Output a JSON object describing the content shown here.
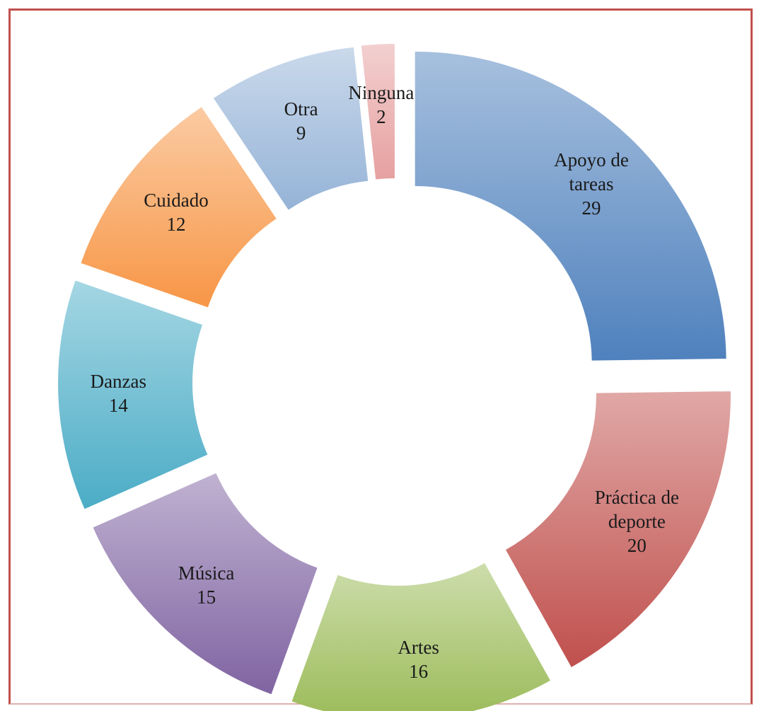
{
  "chart_data": {
    "type": "donut",
    "categories": [
      "Apoyo de tareas",
      "Práctica de deporte",
      "Artes",
      "Música",
      "Danzas",
      "Cuidado",
      "Otra",
      "Ninguna"
    ],
    "values": [
      29,
      20,
      16,
      15,
      14,
      12,
      9,
      2
    ],
    "colors": [
      "#4f81bd",
      "#c0504d",
      "#9bbb59",
      "#8064a2",
      "#4bacc6",
      "#f79646",
      "#95b3d7",
      "#e6a0a0"
    ]
  }
}
